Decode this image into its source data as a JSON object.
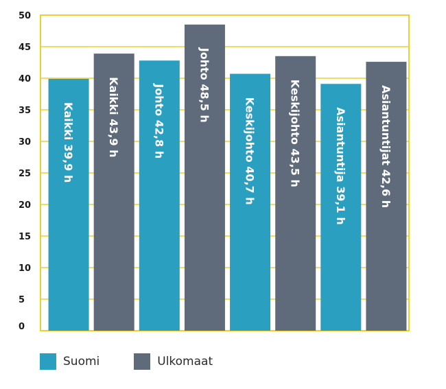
{
  "chart_data": {
    "type": "bar",
    "ylim": [
      0,
      50
    ],
    "yticks": [
      0,
      5,
      10,
      15,
      20,
      25,
      30,
      35,
      40,
      45,
      50
    ],
    "grid": true,
    "grid_color": "#f0d02a",
    "legend_position": "bottom-left",
    "colors": {
      "Suomi": "#2a9fc0",
      "Ulkomaat": "#5f6b7a"
    },
    "bars": [
      {
        "label": "Kaikki 39,9 h",
        "value": 39.9,
        "series": "Suomi"
      },
      {
        "label": "Kaikki 43,9 h",
        "value": 43.9,
        "series": "Ulkomaat"
      },
      {
        "label": "Johto 42,8 h",
        "value": 42.8,
        "series": "Suomi"
      },
      {
        "label": "Johto 48,5 h",
        "value": 48.5,
        "series": "Ulkomaat"
      },
      {
        "label": "Keskijohto 40,7 h",
        "value": 40.7,
        "series": "Suomi"
      },
      {
        "label": "Keskijohto 43,5 h",
        "value": 43.5,
        "series": "Ulkomaat"
      },
      {
        "label": "Asiantuntija 39,1 h",
        "value": 39.1,
        "series": "Suomi"
      },
      {
        "label": "Asiantuntijat 42,6 h",
        "value": 42.6,
        "series": "Ulkomaat"
      }
    ]
  },
  "legend": [
    {
      "name": "Suomi",
      "color": "#2a9fc0"
    },
    {
      "name": "Ulkomaat",
      "color": "#5f6b7a"
    }
  ]
}
